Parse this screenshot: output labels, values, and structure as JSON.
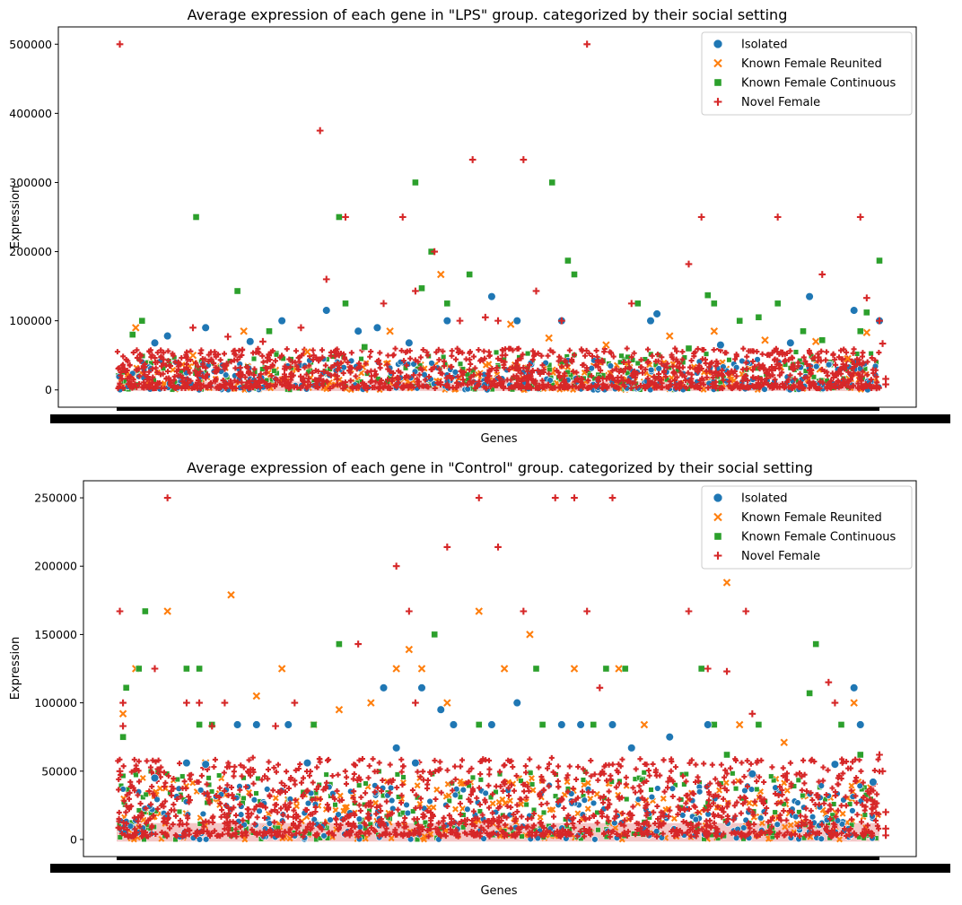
{
  "chart_data": [
    {
      "type": "scatter",
      "title": "Average expression of each gene in \"LPS\" group. categorized by their social setting",
      "xlabel": "Genes",
      "ylabel": "Expression",
      "ylim": [
        -25000,
        525000
      ],
      "yticks": [
        0,
        100000,
        200000,
        300000,
        400000,
        500000
      ],
      "ytick_labels": [
        "0",
        "100000",
        "200000",
        "300000",
        "400000",
        "500000"
      ],
      "x_tick_labels": "dense overlapping gene names (unreadable)",
      "n_genes": 1200,
      "grid": false,
      "legend": "top-right",
      "series": [
        {
          "name": "Isolated",
          "marker": "circle",
          "color": "#1f77b4",
          "outliers": [
            [
              140,
              90000
            ],
            [
              60,
              68000
            ],
            [
              80,
              78000
            ],
            [
              260,
              100000
            ],
            [
              330,
              115000
            ],
            [
              380,
              85000
            ],
            [
              590,
              135000
            ],
            [
              630,
              100000
            ],
            [
              700,
              100000
            ],
            [
              840,
              100000
            ],
            [
              850,
              110000
            ],
            [
              1090,
              135000
            ],
            [
              1160,
              115000
            ],
            [
              1200,
              100000
            ],
            [
              460,
              68000
            ],
            [
              520,
              100000
            ],
            [
              950,
              65000
            ],
            [
              1060,
              68000
            ],
            [
              210,
              70000
            ],
            [
              410,
              90000
            ]
          ],
          "background_max": 45000
        },
        {
          "name": "Known Female Reunited",
          "marker": "x",
          "color": "#ff7f0e",
          "outliers": [
            [
              30,
              90000
            ],
            [
              120,
              50000
            ],
            [
              200,
              85000
            ],
            [
              300,
              55000
            ],
            [
              430,
              85000
            ],
            [
              510,
              167000
            ],
            [
              620,
              95000
            ],
            [
              680,
              75000
            ],
            [
              770,
              65000
            ],
            [
              870,
              78000
            ],
            [
              940,
              85000
            ],
            [
              1020,
              72000
            ],
            [
              1100,
              70000
            ],
            [
              1150,
              45000
            ],
            [
              1180,
              83000
            ]
          ],
          "background_max": 40000
        },
        {
          "name": "Known Female Continuous",
          "marker": "square",
          "color": "#2ca02c",
          "outliers": [
            [
              25,
              80000
            ],
            [
              40,
              100000
            ],
            [
              125,
              250000
            ],
            [
              190,
              143000
            ],
            [
              350,
              250000
            ],
            [
              360,
              125000
            ],
            [
              470,
              300000
            ],
            [
              480,
              147000
            ],
            [
              495,
              200000
            ],
            [
              520,
              125000
            ],
            [
              555,
              167000
            ],
            [
              685,
              300000
            ],
            [
              710,
              187000
            ],
            [
              720,
              167000
            ],
            [
              820,
              125000
            ],
            [
              930,
              137000
            ],
            [
              940,
              125000
            ],
            [
              980,
              100000
            ],
            [
              1010,
              105000
            ],
            [
              1040,
              125000
            ],
            [
              1080,
              85000
            ],
            [
              1110,
              72000
            ],
            [
              1180,
              112000
            ],
            [
              1200,
              187000
            ],
            [
              1170,
              85000
            ],
            [
              240,
              85000
            ],
            [
              390,
              62000
            ],
            [
              900,
              60000
            ]
          ],
          "background_max": 55000
        },
        {
          "name": "Novel Female",
          "marker": "plus",
          "color": "#d62728",
          "outliers": [
            [
              5,
              500000
            ],
            [
              320,
              375000
            ],
            [
              330,
              160000
            ],
            [
              360,
              250000
            ],
            [
              420,
              125000
            ],
            [
              450,
              250000
            ],
            [
              470,
              143000
            ],
            [
              500,
              200000
            ],
            [
              560,
              333000
            ],
            [
              600,
              100000
            ],
            [
              640,
              333000
            ],
            [
              660,
              143000
            ],
            [
              700,
              100000
            ],
            [
              740,
              500000
            ],
            [
              810,
              125000
            ],
            [
              900,
              182000
            ],
            [
              920,
              250000
            ],
            [
              1040,
              250000
            ],
            [
              1110,
              167000
            ],
            [
              1170,
              250000
            ],
            [
              1180,
              133000
            ],
            [
              1200,
              100000
            ],
            [
              1205,
              67000
            ],
            [
              1210,
              8000
            ],
            [
              1210,
              16000
            ],
            [
              120,
              90000
            ],
            [
              175,
              77000
            ],
            [
              230,
              70000
            ],
            [
              290,
              90000
            ],
            [
              540,
              100000
            ],
            [
              580,
              105000
            ]
          ],
          "background_max": 60000
        }
      ]
    },
    {
      "type": "scatter",
      "title": "Average expression of each gene in \"Control\" group. categorized by their social setting",
      "xlabel": "Genes",
      "ylabel": "Expression",
      "ylim": [
        -12500,
        262500
      ],
      "yticks": [
        0,
        50000,
        100000,
        150000,
        200000,
        250000
      ],
      "ytick_labels": [
        "0",
        "50000",
        "100000",
        "150000",
        "200000",
        "250000"
      ],
      "x_tick_labels": "dense overlapping gene names (unreadable)",
      "n_genes": 1200,
      "grid": false,
      "legend": "top-right",
      "series": [
        {
          "name": "Isolated",
          "marker": "circle",
          "color": "#1f77b4",
          "outliers": [
            [
              60,
              45000
            ],
            [
              110,
              56000
            ],
            [
              140,
              55000
            ],
            [
              190,
              84000
            ],
            [
              220,
              84000
            ],
            [
              270,
              84000
            ],
            [
              300,
              56000
            ],
            [
              420,
              111000
            ],
            [
              440,
              67000
            ],
            [
              470,
              56000
            ],
            [
              480,
              111000
            ],
            [
              510,
              95000
            ],
            [
              530,
              84000
            ],
            [
              590,
              84000
            ],
            [
              630,
              100000
            ],
            [
              700,
              84000
            ],
            [
              730,
              84000
            ],
            [
              780,
              84000
            ],
            [
              810,
              67000
            ],
            [
              870,
              75000
            ],
            [
              930,
              84000
            ],
            [
              1000,
              48000
            ],
            [
              1130,
              55000
            ],
            [
              1160,
              111000
            ],
            [
              1170,
              84000
            ],
            [
              1190,
              42000
            ]
          ],
          "background_max": 40000
        },
        {
          "name": "Known Female Reunited",
          "marker": "x",
          "color": "#ff7f0e",
          "outliers": [
            [
              10,
              92000
            ],
            [
              30,
              125000
            ],
            [
              80,
              167000
            ],
            [
              140,
              56000
            ],
            [
              180,
              179000
            ],
            [
              220,
              105000
            ],
            [
              260,
              125000
            ],
            [
              310,
              84000
            ],
            [
              350,
              95000
            ],
            [
              400,
              100000
            ],
            [
              440,
              125000
            ],
            [
              460,
              139000
            ],
            [
              480,
              125000
            ],
            [
              520,
              100000
            ],
            [
              570,
              167000
            ],
            [
              610,
              125000
            ],
            [
              650,
              150000
            ],
            [
              720,
              125000
            ],
            [
              790,
              125000
            ],
            [
              830,
              84000
            ],
            [
              960,
              188000
            ],
            [
              980,
              84000
            ],
            [
              1050,
              71000
            ],
            [
              1160,
              100000
            ]
          ],
          "background_max": 45000
        },
        {
          "name": "Known Female Continuous",
          "marker": "square",
          "color": "#2ca02c",
          "outliers": [
            [
              10,
              75000
            ],
            [
              15,
              111000
            ],
            [
              35,
              125000
            ],
            [
              45,
              167000
            ],
            [
              110,
              125000
            ],
            [
              130,
              125000
            ],
            [
              130,
              84000
            ],
            [
              150,
              84000
            ],
            [
              310,
              84000
            ],
            [
              350,
              143000
            ],
            [
              500,
              150000
            ],
            [
              530,
              84000
            ],
            [
              570,
              84000
            ],
            [
              660,
              125000
            ],
            [
              670,
              84000
            ],
            [
              750,
              84000
            ],
            [
              770,
              125000
            ],
            [
              800,
              125000
            ],
            [
              920,
              125000
            ],
            [
              940,
              84000
            ],
            [
              960,
              62000
            ],
            [
              1010,
              84000
            ],
            [
              1090,
              107000
            ],
            [
              1100,
              143000
            ],
            [
              1140,
              84000
            ],
            [
              1170,
              62000
            ]
          ],
          "background_max": 50000
        },
        {
          "name": "Novel Female",
          "marker": "plus",
          "color": "#d62728",
          "outliers": [
            [
              5,
              167000
            ],
            [
              5,
              50000
            ],
            [
              10,
              100000
            ],
            [
              10,
              83000
            ],
            [
              60,
              125000
            ],
            [
              80,
              250000
            ],
            [
              110,
              100000
            ],
            [
              130,
              100000
            ],
            [
              150,
              83000
            ],
            [
              170,
              100000
            ],
            [
              250,
              83000
            ],
            [
              280,
              100000
            ],
            [
              380,
              143000
            ],
            [
              440,
              200000
            ],
            [
              460,
              167000
            ],
            [
              470,
              100000
            ],
            [
              520,
              214000
            ],
            [
              570,
              250000
            ],
            [
              600,
              214000
            ],
            [
              640,
              167000
            ],
            [
              690,
              250000
            ],
            [
              720,
              250000
            ],
            [
              740,
              167000
            ],
            [
              760,
              111000
            ],
            [
              780,
              250000
            ],
            [
              900,
              167000
            ],
            [
              930,
              125000
            ],
            [
              960,
              123000
            ],
            [
              990,
              167000
            ],
            [
              1000,
              92000
            ],
            [
              1120,
              115000
            ],
            [
              1130,
              100000
            ],
            [
              1200,
              62000
            ],
            [
              1205,
              50000
            ],
            [
              1210,
              8000
            ],
            [
              1210,
              3000
            ],
            [
              1210,
              20000
            ]
          ],
          "background_max": 60000
        }
      ]
    }
  ]
}
